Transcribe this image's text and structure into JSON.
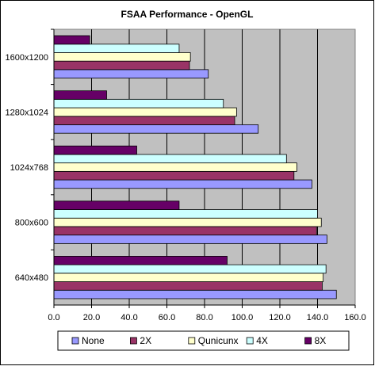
{
  "chart_data": {
    "type": "bar",
    "orientation": "horizontal",
    "title": "FSAA Performance - OpenGL",
    "xlabel": "",
    "ylabel": "",
    "categories": [
      "1600x1200",
      "1280x1024",
      "1024x768",
      "800x600",
      "640x480"
    ],
    "series": [
      {
        "name": "None",
        "color": "#9999ff",
        "values": [
          82.0,
          108.5,
          137.0,
          145.0,
          150.0
        ]
      },
      {
        "name": "2X",
        "color": "#993366",
        "values": [
          72.0,
          96.0,
          127.5,
          139.5,
          142.5
        ]
      },
      {
        "name": "Qunicunx",
        "color": "#ffffcc",
        "values": [
          72.5,
          97.0,
          129.0,
          142.0,
          143.0
        ]
      },
      {
        "name": "4X",
        "color": "#ccffff",
        "values": [
          66.5,
          90.0,
          123.5,
          140.0,
          144.5
        ]
      },
      {
        "name": "8X",
        "color": "#660066",
        "values": [
          19.0,
          28.0,
          44.0,
          66.5,
          92.0
        ]
      }
    ],
    "xlim": [
      0,
      160
    ],
    "x_ticks": [
      "0.0",
      "20.0",
      "40.0",
      "60.0",
      "80.0",
      "100.0",
      "120.0",
      "140.0",
      "160.0"
    ],
    "grid": "vertical",
    "plot_background": "#c0c0c0",
    "legend_position": "bottom"
  }
}
